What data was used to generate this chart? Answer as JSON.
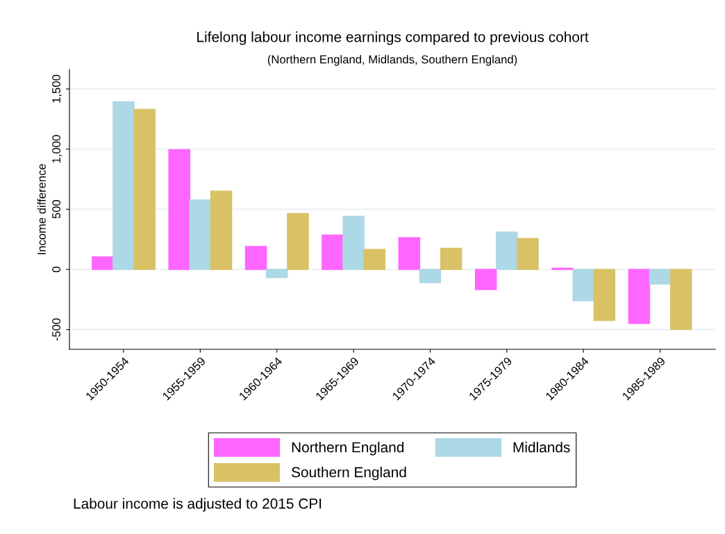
{
  "chart_data": {
    "type": "bar",
    "title": "Lifelong labour income earnings compared to previous cohort",
    "subtitle": "(Northern England, Midlands, Southern England)",
    "ylabel": "Income difference",
    "categories": [
      "1950-1954",
      "1955-1959",
      "1960-1964",
      "1965-1969",
      "1970-1974",
      "1975-1979",
      "1980-1984",
      "1985-1989"
    ],
    "series": [
      {
        "name": "Northern England",
        "color": "#ff66ff",
        "values": [
          104,
          996,
          191,
          286,
          264,
          -168,
          10,
          -450
        ]
      },
      {
        "name": "Midlands",
        "color": "#add8e6",
        "values": [
          1394,
          577,
          -68,
          442,
          -110,
          311,
          -261,
          -122
        ]
      },
      {
        "name": "Southern England",
        "color": "#d9c266",
        "values": [
          1330,
          651,
          465,
          166,
          176,
          257,
          -425,
          -498
        ]
      }
    ],
    "ylim": [
      -664,
      1662
    ],
    "yticks": [
      {
        "value": -500,
        "label": "-500"
      },
      {
        "value": 0,
        "label": "0"
      },
      {
        "value": 500,
        "label": "500"
      },
      {
        "value": 1000,
        "label": "1,000"
      },
      {
        "value": 1500,
        "label": "1,500"
      }
    ],
    "grid": "y",
    "legend": "bottom",
    "annotations": [
      "Labour income is adjusted to 2015 CPI"
    ]
  }
}
